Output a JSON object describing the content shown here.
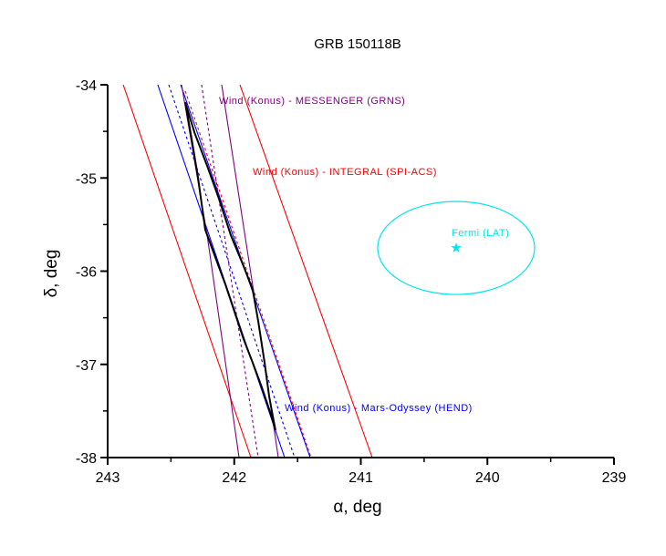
{
  "chart_data": {
    "type": "line",
    "title": "GRB 150118B",
    "xlabel": "α, deg",
    "ylabel": "δ, deg",
    "xlim": [
      243,
      239
    ],
    "ylim": [
      -38,
      -34
    ],
    "x_ticks": [
      243,
      242,
      241,
      240,
      239
    ],
    "x_tick_labels": [
      "243",
      "242",
      "241",
      "240",
      "239"
    ],
    "y_ticks": [
      -34,
      -35,
      -36,
      -37,
      -38
    ],
    "y_tick_labels": [
      "-34",
      "-35",
      "-36",
      "-37",
      "-38"
    ],
    "grid": false,
    "colors": {
      "purple": "#800080",
      "red": "#ff0000",
      "blue": "#0000ff",
      "cyan": "#00e5ee",
      "black": "#000000"
    },
    "series": [
      {
        "name": "Wind (Konus) - INTEGRAL (SPI-ACS) left bound",
        "color": "#ff0000",
        "style": "solid",
        "points": [
          [
            242.877,
            -34
          ],
          [
            241.868,
            -38
          ]
        ]
      },
      {
        "name": "Wind (Konus) - INTEGRAL (SPI-ACS) right bound",
        "color": "#ff0000",
        "style": "solid",
        "points": [
          [
            241.955,
            -34
          ],
          [
            240.91,
            -38
          ]
        ]
      },
      {
        "name": "Wind (Konus) - INTEGRAL (SPI-ACS) center",
        "color": "#ff0000",
        "style": "dotted",
        "points": [
          [
            242.387,
            -34.068
          ],
          [
            241.393,
            -38
          ]
        ]
      },
      {
        "name": "Wind (Konus) - Mars-Odyssey (HEND) bound 1",
        "color": "#0000ff",
        "style": "solid",
        "points": [
          [
            242.604,
            -34
          ],
          [
            242.25,
            -35.408
          ],
          [
            241.602,
            -38
          ]
        ]
      },
      {
        "name": "Wind (Konus) - Mars-Odyssey (HEND) bound 2",
        "color": "#0000ff",
        "style": "solid",
        "points": [
          [
            242.423,
            -34
          ],
          [
            241.4,
            -38
          ]
        ]
      },
      {
        "name": "Wind (Konus) - Mars-Odyssey (HEND) center",
        "color": "#0000ff",
        "style": "dotted",
        "points": [
          [
            242.517,
            -34
          ],
          [
            241.523,
            -38
          ]
        ]
      },
      {
        "name": "Wind (Konus) - MESSENGER (GRNS) bound 1",
        "color": "#800080",
        "style": "solid",
        "points": [
          [
            242.099,
            -34
          ],
          [
            241.811,
            -36.533
          ],
          [
            241.652,
            -38
          ]
        ]
      },
      {
        "name": "Wind (Konus) - MESSENGER (GRNS) bound 2",
        "color": "#800080",
        "style": "solid",
        "points": [
          [
            242.416,
            -34
          ],
          [
            242.214,
            -35.614
          ],
          [
            241.962,
            -38
          ]
        ]
      },
      {
        "name": "Wind (Konus) - MESSENGER (GRNS) center",
        "color": "#800080",
        "style": "dotted",
        "points": [
          [
            242.258,
            -34
          ],
          [
            241.811,
            -38
          ]
        ]
      }
    ],
    "error_box": {
      "name": "localization polygon",
      "color": "#000000",
      "points": [
        [
          242.387,
          -34.186
        ],
        [
          242.337,
          -34.577
        ],
        [
          242.286,
          -34.998
        ],
        [
          242.229,
          -35.555
        ],
        [
          242.142,
          -35.878
        ],
        [
          242.07,
          -36.142
        ],
        [
          241.998,
          -36.435
        ],
        [
          241.926,
          -36.729
        ],
        [
          241.854,
          -36.983
        ],
        [
          241.782,
          -37.247
        ],
        [
          241.71,
          -37.54
        ],
        [
          241.674,
          -37.706
        ],
        [
          241.688,
          -37.609
        ],
        [
          241.724,
          -37.345
        ],
        [
          241.76,
          -36.983
        ],
        [
          241.811,
          -36.533
        ],
        [
          241.854,
          -36.2
        ],
        [
          241.926,
          -35.946
        ],
        [
          242.027,
          -35.614
        ],
        [
          242.121,
          -35.222
        ],
        [
          242.214,
          -34.87
        ],
        [
          242.315,
          -34.509
        ]
      ]
    },
    "fermi_lat": {
      "label": "Fermi (LAT)",
      "center": [
        240.247,
        -35.751
      ],
      "semi_axes_deg": [
        0.62,
        0.499
      ],
      "color": "#00e5ee"
    },
    "annotations": [
      {
        "text": "Wind (Konus) - MESSENGER (GRNS)",
        "at": [
          242.121,
          -34.166
        ],
        "color": "#800080"
      },
      {
        "text": "Wind (Konus) - INTEGRAL (SPI-ACS)",
        "at": [
          241.854,
          -34.929
        ],
        "color": "#ff0000"
      },
      {
        "text": "Wind (Konus) - Mars-Odyssey (HEND)",
        "at": [
          241.602,
          -37.462
        ],
        "color": "#0000ff"
      },
      {
        "text": "Fermi (LAT)",
        "at": [
          240.283,
          -35.584
        ],
        "color": "#00e5ee"
      }
    ]
  }
}
